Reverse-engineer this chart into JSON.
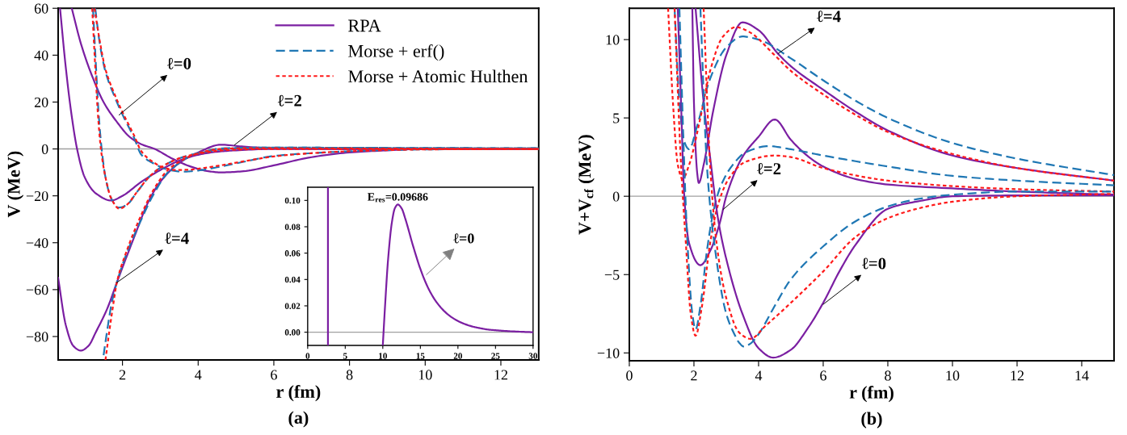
{
  "chart_data": [
    {
      "type": "line",
      "title": "(a)",
      "xlabel": "r (fm)",
      "ylabel": "V (MeV)",
      "xlim": [
        0.3,
        13
      ],
      "ylim": [
        -90,
        60
      ],
      "xticks": [
        2,
        4,
        6,
        8,
        10,
        12
      ],
      "yticks": [
        -80,
        -60,
        -40,
        -20,
        0,
        20,
        40,
        60
      ],
      "grid": false,
      "legend": "top right",
      "ref_lines": [
        {
          "axis": "y",
          "value": 0,
          "color": "#a0a0a0",
          "line_style": "solid"
        }
      ],
      "annotations": [
        {
          "text": "ℓ=0",
          "x": 1.91,
          "y": 14.5
        },
        {
          "text": "ℓ=2",
          "x": 4.96,
          "y": 1.7
        },
        {
          "text": "ℓ=4",
          "x": 1.85,
          "y": -57
        }
      ],
      "series": [
        {
          "name": "RPA",
          "color": "#7b1fa2",
          "line_style": "solid",
          "x": [
            0.35,
            0.5,
            0.65,
            0.8,
            1.0,
            1.3,
            1.7,
            2.0,
            2.5,
            3.0,
            3.5,
            4.0,
            4.5,
            5.0,
            6.0,
            8.0,
            13.0
          ],
          "values": [
            60,
            35,
            15,
            0,
            -12,
            -19,
            -22,
            -20,
            -14,
            -9,
            -5,
            -2.5,
            -1.2,
            -0.6,
            0,
            0,
            0
          ]
        },
        {
          "color": "#7b1fa2",
          "line_style": "solid",
          "x": [
            0.66,
            0.9,
            1.2,
            1.5,
            1.83,
            2.2,
            2.5,
            2.85,
            3.3,
            3.8,
            4.2,
            4.6,
            5.2,
            6.0,
            7.0,
            8.0,
            9.0,
            10.0,
            13.0
          ],
          "values": [
            60,
            45,
            31,
            20,
            12,
            5,
            2,
            0,
            -4,
            -7.5,
            -9.3,
            -10,
            -9.5,
            -7,
            -3.5,
            -1.5,
            -0.6,
            0,
            0
          ]
        },
        {
          "color": "#7b1fa2",
          "line_style": "solid",
          "x": [
            0.3,
            0.5,
            0.7,
            0.9,
            1.1,
            1.3,
            1.6,
            1.85,
            2.3,
            2.7,
            3.0,
            3.5,
            4.0,
            4.6,
            5.2,
            6.0,
            8.0,
            13.0
          ],
          "values": [
            -55,
            -75,
            -84,
            -86,
            -84,
            -78,
            -68,
            -57,
            -38,
            -22,
            -14,
            -6,
            -1.5,
            1.8,
            1,
            0.3,
            0,
            0
          ]
        },
        {
          "name": "Morse + erf()",
          "color": "#1f77b4",
          "line_style": "dashed",
          "x": [
            1.22,
            1.3,
            1.37,
            1.45,
            1.55,
            1.7,
            1.9,
            2.1,
            2.4,
            2.7,
            3.0,
            3.5,
            4.0,
            4.5,
            5.0,
            6.0,
            8.0,
            13.0
          ],
          "values": [
            60,
            35,
            15,
            0,
            -12,
            -21,
            -25,
            -24,
            -18,
            -12,
            -8,
            -4,
            -1.8,
            -0.5,
            0.3,
            0.6,
            0.5,
            0.3
          ]
        },
        {
          "color": "#1f77b4",
          "line_style": "dashed",
          "x": [
            1.28,
            1.4,
            1.55,
            1.8,
            2.02,
            2.3,
            2.5,
            2.8,
            3.2,
            3.6,
            4.0,
            4.6,
            5.2,
            6.0,
            7.0,
            8.0,
            10.0,
            13.0
          ],
          "values": [
            60,
            45,
            33,
            22,
            14,
            5,
            -2.5,
            -6,
            -8.8,
            -9.7,
            -9.2,
            -7.5,
            -5.5,
            -3,
            -1.8,
            -1,
            -0.2,
            0
          ]
        },
        {
          "color": "#1f77b4",
          "line_style": "dashed",
          "x": [
            1.5,
            1.6,
            1.7,
            1.85,
            2.1,
            2.5,
            2.8,
            3.2,
            3.5,
            3.8,
            4.2,
            4.6,
            5.2,
            6.0,
            8.0,
            13.0
          ],
          "values": [
            -88,
            -77,
            -67,
            -57,
            -45,
            -30,
            -20,
            -10,
            -6,
            -3,
            -1,
            0.2,
            0.5,
            0.6,
            0.5,
            0.3
          ]
        },
        {
          "name": "Morse + Atomic Hulthen",
          "color": "#ff1a1a",
          "line_style": "dotted",
          "x": [
            1.2,
            1.28,
            1.35,
            1.43,
            1.55,
            1.7,
            1.92,
            2.1,
            2.4,
            2.7,
            3.0,
            3.5,
            4.0,
            4.5,
            5.0,
            6.0,
            8.0,
            13.0
          ],
          "values": [
            60,
            35,
            15,
            0,
            -12,
            -21,
            -25.5,
            -24,
            -18,
            -12,
            -8,
            -4,
            -2,
            -0.8,
            -0.3,
            0,
            0,
            0
          ]
        },
        {
          "color": "#ff1a1a",
          "line_style": "dotted",
          "x": [
            1.26,
            1.4,
            1.55,
            1.8,
            2.02,
            2.3,
            2.5,
            2.8,
            3.1,
            3.4,
            3.8,
            4.2,
            4.6,
            5.2,
            6.0,
            7.0,
            8.0,
            10.0,
            13.0
          ],
          "values": [
            60,
            46,
            34,
            23,
            15,
            6,
            -1,
            -5.5,
            -8,
            -9,
            -8.8,
            -8,
            -7,
            -5.3,
            -3.2,
            -1.8,
            -1,
            -0.2,
            0
          ]
        },
        {
          "color": "#ff1a1a",
          "line_style": "dotted",
          "x": [
            1.55,
            1.65,
            1.75,
            1.85,
            2.1,
            2.5,
            2.8,
            3.2,
            3.5,
            3.8,
            4.2,
            4.6,
            5.2,
            6.0,
            8.0,
            13.0
          ],
          "values": [
            -90,
            -78,
            -67,
            -57,
            -44,
            -28,
            -18,
            -9,
            -5.5,
            -3,
            -1,
            0,
            0.3,
            0.3,
            0.2,
            0
          ]
        }
      ]
    },
    {
      "type": "line",
      "xlim": [
        0,
        30
      ],
      "ylim": [
        -0.01,
        0.11
      ],
      "xticks": [
        0,
        5,
        10,
        15,
        20,
        25,
        30
      ],
      "yticks": [
        {
          "value": 0,
          "label": "0.00"
        },
        {
          "value": 0.02,
          "label": "0.02"
        },
        {
          "value": 0.04,
          "label": "0.04"
        },
        {
          "value": 0.06,
          "label": "0.06"
        },
        {
          "value": 0.08,
          "label": "0.08"
        },
        {
          "value": 0.1,
          "label": "0.10"
        }
      ],
      "grid": false,
      "ref_lines": [
        {
          "axis": "y",
          "value": 0,
          "color": "#a0a0a0",
          "line_style": "solid"
        }
      ],
      "annotations": [
        {
          "text": "E$_{res}$=0.09686",
          "x": 12,
          "y": 0.09686
        },
        {
          "text": "ℓ=0",
          "x": 15.8,
          "y": 0.0436
        }
      ],
      "series": [
        {
          "color": "#7b1fa2",
          "line_style": "solid",
          "x": [
            2.7,
            2.7
          ],
          "values": [
            0.11,
            -0.01
          ]
        },
        {
          "color": "#7b1fa2",
          "line_style": "solid",
          "x": [
            10.0,
            10.3,
            10.7,
            11.2,
            11.6,
            12.0,
            12.5,
            13.0,
            14.0,
            15.0,
            16.0,
            17.0,
            18.0,
            19.0,
            20.0,
            21.0,
            22.0,
            23.0,
            24.0,
            25.0,
            27.0,
            30.0
          ],
          "values": [
            -0.01,
            0.02,
            0.055,
            0.083,
            0.094,
            0.0969,
            0.094,
            0.086,
            0.066,
            0.048,
            0.034,
            0.024,
            0.017,
            0.012,
            0.0085,
            0.006,
            0.0042,
            0.003,
            0.002,
            0.0015,
            0.0007,
            0
          ]
        }
      ]
    },
    {
      "type": "line",
      "title": "(b)",
      "xlabel": "r (fm)",
      "ylabel": "V+V$_{cf}$ (MeV)",
      "xlim": [
        0,
        15
      ],
      "ylim": [
        -10.5,
        12
      ],
      "xticks": [
        0,
        2,
        4,
        6,
        8,
        10,
        12,
        14
      ],
      "yticks": [
        -10,
        -5,
        0,
        5,
        10
      ],
      "grid": false,
      "ref_lines": [
        {
          "axis": "y",
          "value": 0,
          "color": "#a0a0a0",
          "line_style": "solid"
        }
      ],
      "annotations": [
        {
          "text": "ℓ=4",
          "x": 4.6,
          "y": 9.1
        },
        {
          "text": "ℓ=2",
          "x": 2.9,
          "y": -0.85
        },
        {
          "text": "ℓ=0",
          "x": 6.0,
          "y": -6.9
        }
      ],
      "series": [
        {
          "color": "#7b1fa2",
          "line_style": "solid",
          "x": [
            1.95,
            2.0,
            2.1,
            2.15,
            2.3,
            2.6,
            3.0,
            3.5,
            4.0,
            4.6,
            5.0,
            6.0,
            7.0,
            8.0,
            10.0,
            12.0,
            15.0
          ],
          "values": [
            12,
            6,
            1.5,
            0.85,
            2,
            5.5,
            9,
            11.1,
            10.6,
            9.1,
            8.3,
            6.8,
            5.4,
            4.2,
            2.6,
            1.8,
            1.0
          ]
        },
        {
          "color": "#1f77b4",
          "line_style": "dashed",
          "x": [
            1.4,
            1.55,
            1.7,
            1.85,
            2.1,
            2.5,
            3.0,
            3.5,
            4.0,
            5.0,
            6.0,
            7.0,
            8.0,
            10.0,
            12.0,
            15.0
          ],
          "values": [
            12,
            6,
            3.5,
            3.0,
            4.5,
            7.5,
            9.5,
            10.2,
            10.0,
            8.8,
            7.4,
            6.1,
            5.0,
            3.4,
            2.4,
            1.35
          ]
        },
        {
          "color": "#ff1a1a",
          "line_style": "dotted",
          "x": [
            1.2,
            1.35,
            1.5,
            1.65,
            1.85,
            2.2,
            2.5,
            2.9,
            3.3,
            3.7,
            4.5,
            5.0,
            6.0,
            7.0,
            8.0,
            10.0,
            12.0,
            15.0
          ],
          "values": [
            12,
            6,
            2,
            1.1,
            2,
            5,
            8,
            10.2,
            10.8,
            10.5,
            9,
            8,
            6.5,
            5.2,
            4.1,
            2.7,
            1.8,
            1.0
          ]
        },
        {
          "color": "#7b1fa2",
          "line_style": "solid",
          "x": [
            1.5,
            1.6,
            1.7,
            1.85,
            2.2,
            2.5,
            2.8,
            3.0,
            3.5,
            4.0,
            4.5,
            5.0,
            5.5,
            6.0,
            7.0,
            8.0,
            10.0,
            12.0,
            15.0
          ],
          "values": [
            12,
            6,
            0,
            -3,
            -4.4,
            -3.5,
            -1.7,
            0,
            2.5,
            3.8,
            4.9,
            3.6,
            2.6,
            1.9,
            1.1,
            0.75,
            0.5,
            0.3,
            0.1
          ]
        },
        {
          "color": "#1f77b4",
          "line_style": "dashed",
          "x": [
            1.55,
            1.7,
            1.8,
            1.95,
            2.05,
            2.2,
            2.4,
            2.6,
            2.8,
            3.2,
            3.6,
            4.3,
            5.0,
            6.0,
            8.0,
            10.0,
            12.0,
            15.0
          ],
          "values": [
            12,
            2,
            -3,
            -7.5,
            -8.5,
            -7,
            -3.5,
            -1,
            0.5,
            2,
            2.8,
            3.2,
            3.0,
            2.6,
            1.9,
            1.3,
            1.0,
            0.7
          ]
        },
        {
          "color": "#ff1a1a",
          "line_style": "dotted",
          "x": [
            1.4,
            1.6,
            1.75,
            1.9,
            2.05,
            2.25,
            2.5,
            2.75,
            3.1,
            3.6,
            4.5,
            5.0,
            6.0,
            8.0,
            10.0,
            12.0,
            15.0
          ],
          "values": [
            12,
            2,
            -3,
            -7.5,
            -8.9,
            -7,
            -3,
            -0.5,
            1.2,
            2.2,
            2.6,
            2.5,
            1.8,
            1.0,
            0.65,
            0.45,
            0.3
          ]
        },
        {
          "color": "#7b1fa2",
          "line_style": "solid",
          "x": [
            2.05,
            2.3,
            2.5,
            2.75,
            3.0,
            3.5,
            4.0,
            4.45,
            5.0,
            5.5,
            6.0,
            6.5,
            7.0,
            8.0,
            9.0,
            10.0,
            12.0,
            15.0
          ],
          "values": [
            12,
            6,
            2.5,
            -1.5,
            -4,
            -7.5,
            -9.7,
            -10.3,
            -9.8,
            -8.5,
            -6.8,
            -4.8,
            -3.1,
            -0.8,
            -0.3,
            0,
            0.05,
            0.05
          ]
        },
        {
          "color": "#1f77b4",
          "line_style": "dashed",
          "x": [
            2.2,
            2.4,
            2.6,
            3.0,
            3.25,
            3.4,
            3.55,
            3.75,
            4.0,
            4.5,
            5.0,
            6.0,
            7.0,
            8.0,
            9.0,
            10.0,
            12.0,
            15.0
          ],
          "values": [
            12,
            2,
            -2.5,
            -7.5,
            -8.8,
            -9.35,
            -9.6,
            -9.4,
            -8.8,
            -7,
            -5.3,
            -3.2,
            -1.6,
            -0.65,
            -0.15,
            0.1,
            0.3,
            0.3
          ]
        },
        {
          "color": "#ff1a1a",
          "line_style": "dotted",
          "x": [
            2.3,
            2.5,
            2.7,
            3.0,
            3.4,
            3.75,
            4.2,
            5.0,
            6.0,
            7.0,
            8.0,
            9.0,
            10.0,
            12.0,
            15.0
          ],
          "values": [
            12,
            2,
            -3,
            -6.5,
            -8.7,
            -9.1,
            -8.3,
            -6.8,
            -4.8,
            -2.6,
            -1.4,
            -0.75,
            -0.35,
            0,
            0.15
          ]
        }
      ]
    }
  ]
}
